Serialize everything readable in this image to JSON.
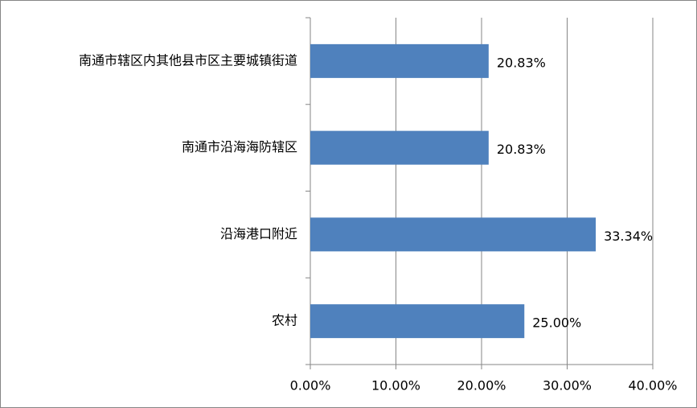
{
  "chart_data": {
    "type": "bar",
    "orientation": "horizontal",
    "categories": [
      "南通市辖区内其他县市区主要城镇街道",
      "南通市沿海海防辖区",
      "沿海港口附近",
      "农村"
    ],
    "values": [
      20.83,
      20.83,
      33.34,
      25.0
    ],
    "value_labels": [
      "20.83%",
      "20.83%",
      "33.34%",
      "25.00%"
    ],
    "color": "#4f81bd",
    "xlim": [
      0,
      40
    ],
    "xticks": [
      {
        "value": 0,
        "label": "0.00%"
      },
      {
        "value": 10,
        "label": "10.00%"
      },
      {
        "value": 20,
        "label": "20.00%"
      },
      {
        "value": 30,
        "label": "30.00%"
      },
      {
        "value": 40,
        "label": "40.00%"
      }
    ],
    "grid": true
  }
}
